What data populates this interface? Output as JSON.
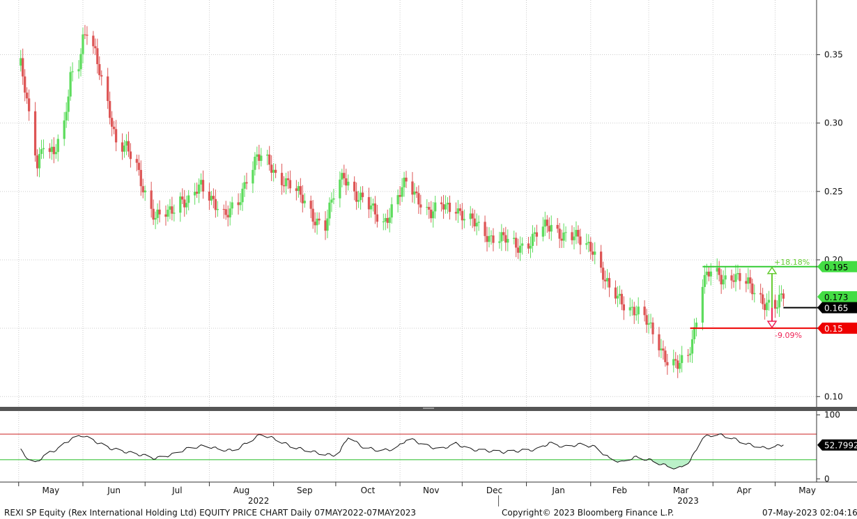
{
  "chart_data": [
    {
      "type": "candlestick",
      "title": "REXI SP Equity (Rex International Holding Ltd) EQUITY PRICE CHART",
      "frequency": "Daily",
      "range": "07MAY2022-07MAY2023",
      "x_months": [
        "May",
        "Jun",
        "Jul",
        "Aug",
        "Sep",
        "Oct",
        "Nov",
        "Dec",
        "Jan",
        "Feb",
        "Mar",
        "Apr",
        "May"
      ],
      "x_years": [
        "2022",
        "2023"
      ],
      "y_ticks": [
        "0.10",
        "0.15",
        "0.20",
        "0.25",
        "0.30",
        "0.35"
      ],
      "ylim": [
        0.093,
        0.39
      ],
      "grid": true,
      "close_path": [
        {
          "date": "2022-05-02",
          "close": 0.342
        },
        {
          "date": "2022-05-06",
          "close": 0.304
        },
        {
          "date": "2022-05-10",
          "close": 0.271
        },
        {
          "date": "2022-05-13",
          "close": 0.288
        },
        {
          "date": "2022-05-18",
          "close": 0.276
        },
        {
          "date": "2022-05-23",
          "close": 0.296
        },
        {
          "date": "2022-05-26",
          "close": 0.336
        },
        {
          "date": "2022-05-30",
          "close": 0.346
        },
        {
          "date": "2022-06-01",
          "close": 0.362
        },
        {
          "date": "2022-06-03",
          "close": 0.366
        },
        {
          "date": "2022-06-07",
          "close": 0.348
        },
        {
          "date": "2022-06-10",
          "close": 0.332
        },
        {
          "date": "2022-06-14",
          "close": 0.31
        },
        {
          "date": "2022-06-17",
          "close": 0.286
        },
        {
          "date": "2022-06-22",
          "close": 0.28
        },
        {
          "date": "2022-06-27",
          "close": 0.268
        },
        {
          "date": "2022-07-01",
          "close": 0.25
        },
        {
          "date": "2022-07-06",
          "close": 0.23
        },
        {
          "date": "2022-07-12",
          "close": 0.233
        },
        {
          "date": "2022-07-18",
          "close": 0.246
        },
        {
          "date": "2022-07-22",
          "close": 0.242
        },
        {
          "date": "2022-07-28",
          "close": 0.253
        },
        {
          "date": "2022-08-03",
          "close": 0.245
        },
        {
          "date": "2022-08-09",
          "close": 0.231
        },
        {
          "date": "2022-08-15",
          "close": 0.24
        },
        {
          "date": "2022-08-19",
          "close": 0.262
        },
        {
          "date": "2022-08-24",
          "close": 0.276
        },
        {
          "date": "2022-08-29",
          "close": 0.27
        },
        {
          "date": "2022-09-02",
          "close": 0.262
        },
        {
          "date": "2022-09-08",
          "close": 0.258
        },
        {
          "date": "2022-09-14",
          "close": 0.245
        },
        {
          "date": "2022-09-20",
          "close": 0.232
        },
        {
          "date": "2022-09-26",
          "close": 0.226
        },
        {
          "date": "2022-09-30",
          "close": 0.246
        },
        {
          "date": "2022-10-05",
          "close": 0.262
        },
        {
          "date": "2022-10-11",
          "close": 0.248
        },
        {
          "date": "2022-10-17",
          "close": 0.238
        },
        {
          "date": "2022-10-24",
          "close": 0.228
        },
        {
          "date": "2022-10-31",
          "close": 0.245
        },
        {
          "date": "2022-11-04",
          "close": 0.256
        },
        {
          "date": "2022-11-10",
          "close": 0.246
        },
        {
          "date": "2022-11-16",
          "close": 0.233
        },
        {
          "date": "2022-11-22",
          "close": 0.239
        },
        {
          "date": "2022-11-28",
          "close": 0.24
        },
        {
          "date": "2022-12-02",
          "close": 0.23
        },
        {
          "date": "2022-12-08",
          "close": 0.225
        },
        {
          "date": "2022-12-14",
          "close": 0.218
        },
        {
          "date": "2022-12-20",
          "close": 0.215
        },
        {
          "date": "2022-12-27",
          "close": 0.21
        },
        {
          "date": "2023-01-03",
          "close": 0.214
        },
        {
          "date": "2023-01-09",
          "close": 0.222
        },
        {
          "date": "2023-01-13",
          "close": 0.226
        },
        {
          "date": "2023-01-19",
          "close": 0.218
        },
        {
          "date": "2023-01-27",
          "close": 0.214
        },
        {
          "date": "2023-02-02",
          "close": 0.21
        },
        {
          "date": "2023-02-07",
          "close": 0.188
        },
        {
          "date": "2023-02-10",
          "close": 0.176
        },
        {
          "date": "2023-02-15",
          "close": 0.172
        },
        {
          "date": "2023-02-20",
          "close": 0.166
        },
        {
          "date": "2023-02-24",
          "close": 0.16
        },
        {
          "date": "2023-03-01",
          "close": 0.152
        },
        {
          "date": "2023-03-06",
          "close": 0.14
        },
        {
          "date": "2023-03-10",
          "close": 0.126
        },
        {
          "date": "2023-03-15",
          "close": 0.121
        },
        {
          "date": "2023-03-20",
          "close": 0.13
        },
        {
          "date": "2023-03-23",
          "close": 0.15
        },
        {
          "date": "2023-03-27",
          "close": 0.185
        },
        {
          "date": "2023-03-31",
          "close": 0.19
        },
        {
          "date": "2023-04-05",
          "close": 0.186
        },
        {
          "date": "2023-04-11",
          "close": 0.19
        },
        {
          "date": "2023-04-17",
          "close": 0.182
        },
        {
          "date": "2023-04-21",
          "close": 0.176
        },
        {
          "date": "2023-04-26",
          "close": 0.17
        },
        {
          "date": "2023-05-02",
          "close": 0.166
        },
        {
          "date": "2023-05-05",
          "close": 0.173
        }
      ],
      "price_labels": [
        {
          "value": 0.195,
          "label": "0.195",
          "color": "#44dd44",
          "text_color": "#000000"
        },
        {
          "value": 0.173,
          "label": "0.173",
          "color": "#44dd44",
          "text_color": "#000000"
        },
        {
          "value": 0.165,
          "label": "0.165",
          "color": "#000000",
          "text_color": "#ffffff"
        },
        {
          "value": 0.15,
          "label": "0.15",
          "color": "#ee0000",
          "text_color": "#ffffff"
        }
      ],
      "annotations": [
        {
          "text": "+18.18%",
          "color": "#66cc33",
          "from": 0.165,
          "to": 0.195
        },
        {
          "text": "-9.09%",
          "color": "#ee2255",
          "from": 0.165,
          "to": 0.15
        }
      ]
    },
    {
      "type": "line",
      "y_ticks": [
        "100",
        "0"
      ],
      "ylim": [
        -5,
        105
      ],
      "upper_band": 70,
      "lower_band": 30,
      "last_value_label": "52.7992",
      "points": [
        {
          "date": "2022-05-02",
          "value": 45
        },
        {
          "date": "2022-05-08",
          "value": 22
        },
        {
          "date": "2022-05-14",
          "value": 38
        },
        {
          "date": "2022-05-20",
          "value": 47
        },
        {
          "date": "2022-05-26",
          "value": 62
        },
        {
          "date": "2022-06-01",
          "value": 68
        },
        {
          "date": "2022-06-06",
          "value": 60
        },
        {
          "date": "2022-06-14",
          "value": 48
        },
        {
          "date": "2022-06-22",
          "value": 42
        },
        {
          "date": "2022-06-30",
          "value": 37
        },
        {
          "date": "2022-07-06",
          "value": 32
        },
        {
          "date": "2022-07-14",
          "value": 38
        },
        {
          "date": "2022-07-22",
          "value": 48
        },
        {
          "date": "2022-07-30",
          "value": 52
        },
        {
          "date": "2022-08-06",
          "value": 46
        },
        {
          "date": "2022-08-13",
          "value": 44
        },
        {
          "date": "2022-08-20",
          "value": 58
        },
        {
          "date": "2022-08-26",
          "value": 70
        },
        {
          "date": "2022-09-02",
          "value": 62
        },
        {
          "date": "2022-09-10",
          "value": 50
        },
        {
          "date": "2022-09-18",
          "value": 44
        },
        {
          "date": "2022-09-26",
          "value": 38
        },
        {
          "date": "2022-10-02",
          "value": 37
        },
        {
          "date": "2022-10-07",
          "value": 66
        },
        {
          "date": "2022-10-14",
          "value": 50
        },
        {
          "date": "2022-10-22",
          "value": 44
        },
        {
          "date": "2022-10-30",
          "value": 47
        },
        {
          "date": "2022-11-05",
          "value": 64
        },
        {
          "date": "2022-11-12",
          "value": 54
        },
        {
          "date": "2022-11-20",
          "value": 46
        },
        {
          "date": "2022-11-28",
          "value": 55
        },
        {
          "date": "2022-12-05",
          "value": 46
        },
        {
          "date": "2022-12-13",
          "value": 44
        },
        {
          "date": "2022-12-21",
          "value": 42
        },
        {
          "date": "2022-12-29",
          "value": 44
        },
        {
          "date": "2023-01-06",
          "value": 46
        },
        {
          "date": "2023-01-12",
          "value": 56
        },
        {
          "date": "2023-01-19",
          "value": 50
        },
        {
          "date": "2023-01-27",
          "value": 54
        },
        {
          "date": "2023-02-03",
          "value": 50
        },
        {
          "date": "2023-02-10",
          "value": 32
        },
        {
          "date": "2023-02-16",
          "value": 26
        },
        {
          "date": "2023-02-22",
          "value": 34
        },
        {
          "date": "2023-03-01",
          "value": 30
        },
        {
          "date": "2023-03-08",
          "value": 22
        },
        {
          "date": "2023-03-15",
          "value": 16
        },
        {
          "date": "2023-03-21",
          "value": 28
        },
        {
          "date": "2023-03-27",
          "value": 65
        },
        {
          "date": "2023-04-03",
          "value": 70
        },
        {
          "date": "2023-04-10",
          "value": 64
        },
        {
          "date": "2023-04-17",
          "value": 55
        },
        {
          "date": "2023-04-26",
          "value": 48
        },
        {
          "date": "2023-05-05",
          "value": 53
        }
      ]
    }
  ],
  "footer": {
    "title": "REXI SP Equity (Rex International Holding Ltd) EQUITY PRICE CHART  Daily 07MAY2022-07MAY2023",
    "copyright": "Copyright© 2023 Bloomberg Finance L.P.",
    "timestamp": "07-May-2023  02:04:16"
  },
  "colors": {
    "up": "#5ddc5d",
    "down": "#dd5555",
    "grid": "#cccccc",
    "upper_band": "#cc2222",
    "lower_band": "#22bb22"
  }
}
